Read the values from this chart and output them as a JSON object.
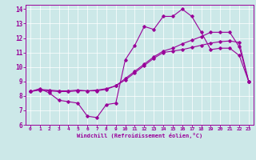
{
  "xlabel": "Windchill (Refroidissement éolien,°C)",
  "bg_color": "#cce8e8",
  "line_color": "#990099",
  "xlim": [
    -0.5,
    23.5
  ],
  "ylim": [
    6,
    14.3
  ],
  "xticks": [
    0,
    1,
    2,
    3,
    4,
    5,
    6,
    7,
    8,
    9,
    10,
    11,
    12,
    13,
    14,
    15,
    16,
    17,
    18,
    19,
    20,
    21,
    22,
    23
  ],
  "yticks": [
    6,
    7,
    8,
    9,
    10,
    11,
    12,
    13,
    14
  ],
  "series1_x": [
    0,
    1,
    2,
    3,
    4,
    5,
    6,
    7,
    8,
    9,
    10,
    11,
    12,
    13,
    14,
    15,
    16,
    17,
    18,
    19,
    20,
    21,
    22,
    23
  ],
  "series1_y": [
    8.3,
    8.5,
    8.2,
    7.7,
    7.6,
    7.5,
    6.6,
    6.5,
    7.4,
    7.5,
    10.5,
    11.5,
    12.8,
    12.6,
    13.5,
    13.5,
    14.0,
    13.5,
    12.4,
    11.2,
    11.3,
    11.3,
    10.8,
    9.0
  ],
  "series2_x": [
    0,
    1,
    2,
    3,
    4,
    5,
    6,
    7,
    8,
    9,
    10,
    11,
    12,
    13,
    14,
    15,
    16,
    17,
    18,
    19,
    20,
    21,
    22,
    23
  ],
  "series2_y": [
    8.3,
    8.45,
    8.4,
    8.35,
    8.35,
    8.4,
    8.35,
    8.4,
    8.5,
    8.7,
    9.2,
    9.7,
    10.2,
    10.7,
    11.1,
    11.3,
    11.6,
    11.85,
    12.1,
    12.4,
    12.4,
    12.4,
    11.4,
    9.0
  ],
  "series3_x": [
    0,
    1,
    2,
    3,
    4,
    5,
    6,
    7,
    8,
    9,
    10,
    11,
    12,
    13,
    14,
    15,
    16,
    17,
    18,
    19,
    20,
    21,
    22,
    23
  ],
  "series3_y": [
    8.3,
    8.4,
    8.35,
    8.3,
    8.3,
    8.35,
    8.35,
    8.35,
    8.45,
    8.7,
    9.1,
    9.6,
    10.1,
    10.6,
    11.0,
    11.1,
    11.2,
    11.35,
    11.5,
    11.65,
    11.75,
    11.8,
    11.7,
    9.0
  ]
}
